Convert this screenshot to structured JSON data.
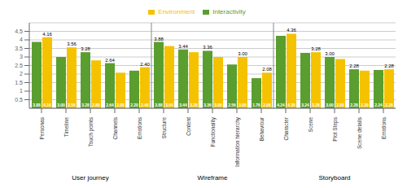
{
  "chart_data": {
    "type": "bar",
    "categories": [
      "Personas",
      "Timeline",
      "Touch points",
      "Channels",
      "Emotions",
      "Structure",
      "Content",
      "Functionality",
      "Information hierarchy",
      "Behaviour",
      "Character",
      "Scene",
      "Plot Steps",
      "Scene details",
      "Emotions"
    ],
    "series": [
      {
        "name": "Interactivity",
        "color": "#5a9e2f",
        "values": [
          3.88,
          3.0,
          3.28,
          2.64,
          2.2,
          3.88,
          3.44,
          3.36,
          2.56,
          1.76,
          4.24,
          3.24,
          3.0,
          2.28,
          2.24
        ],
        "value_labels": [
          "3.88",
          "3.00",
          "3.28",
          "2.64",
          "2.20",
          "3.88",
          "3.44",
          "3.36",
          "2.56",
          "1.76",
          "4.24",
          "3.24",
          "3.00",
          "2.28",
          "2.24"
        ]
      },
      {
        "name": "Environment",
        "color": "#f5c200",
        "values": [
          4.16,
          3.56,
          2.8,
          2.08,
          2.4,
          3.64,
          3.28,
          3.0,
          3.0,
          2.08,
          4.36,
          3.28,
          2.88,
          2.2,
          2.28
        ],
        "value_labels": [
          "4.16",
          "3.56",
          "2.80",
          "2.08",
          "2.40",
          "3.64",
          "3.28",
          "3.00",
          "3.00",
          "2.08",
          "4.36",
          "3.28",
          "2.88",
          "2.20",
          "2.28"
        ]
      }
    ],
    "annotations": [
      {
        "text": "User journey",
        "x_range": [
          0,
          4
        ]
      },
      {
        "text": "Wireframe",
        "x_range": [
          5,
          9
        ]
      },
      {
        "text": "Storyboard",
        "x_range": [
          10,
          14
        ]
      }
    ],
    "ylim": [
      0,
      5
    ],
    "yticks": [
      0.5,
      1,
      1.5,
      2,
      2.5,
      3,
      3.5,
      4,
      4.5
    ],
    "grid": true,
    "legend": "top",
    "data_labels": true
  }
}
